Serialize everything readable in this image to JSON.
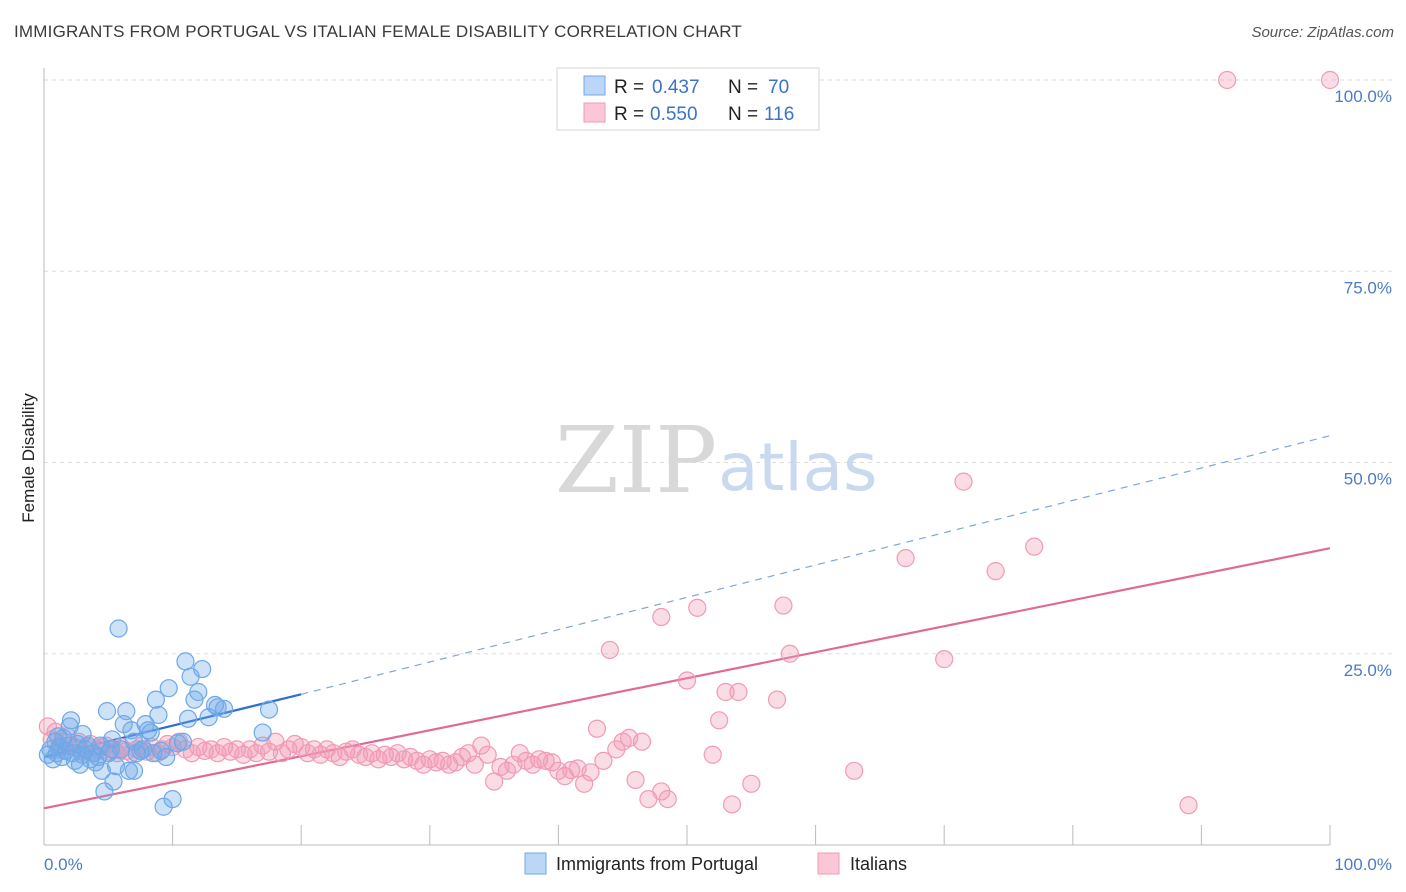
{
  "title": "IMMIGRANTS FROM PORTUGAL VS ITALIAN FEMALE DISABILITY CORRELATION CHART",
  "source": "Source: ZipAtlas.com",
  "watermark": {
    "zip": "ZIP",
    "atlas": "atlas"
  },
  "colors": {
    "blue": "#6fa8e8",
    "blue_line": "#2f6fd1",
    "pink": "#f29ab5",
    "pink_line": "#e06a94",
    "grid": "#dddddd"
  },
  "legend": {
    "series": [
      {
        "r_label": "R =",
        "r_value": "0.437",
        "n_label": "N =",
        "n_value": "70"
      },
      {
        "r_label": "R =",
        "r_value": "0.550",
        "n_label": "N =",
        "n_value": "116"
      }
    ]
  },
  "chart_data": {
    "type": "scatter",
    "title": "IMMIGRANTS FROM PORTUGAL VS ITALIAN FEMALE DISABILITY CORRELATION CHART",
    "xlabel": "",
    "ylabel": "Female Disability",
    "xlim": [
      0,
      100
    ],
    "ylim": [
      0,
      100
    ],
    "x_tick_labels": [
      "0.0%",
      "100.0%"
    ],
    "y_tick_labels": [
      {
        "v": 100,
        "label": "100.0%"
      },
      {
        "v": 75,
        "label": "75.0%"
      },
      {
        "v": 50,
        "label": "50.0%"
      },
      {
        "v": 25,
        "label": "25.0%"
      }
    ],
    "grid": true,
    "series": [
      {
        "name": "Immigrants from Portugal",
        "r": 0.437,
        "n": 70,
        "trend": {
          "x0": 0,
          "y0": 11.5,
          "x1": 20,
          "y1": 19.7,
          "dash_to_x": 100,
          "dash_to_y": 53.5
        },
        "points": [
          [
            0.3,
            11.8
          ],
          [
            0.5,
            12.5
          ],
          [
            0.7,
            11.2
          ],
          [
            0.9,
            13.5
          ],
          [
            1.0,
            12.0
          ],
          [
            1.2,
            12.8
          ],
          [
            1.4,
            11.5
          ],
          [
            1.5,
            14.0
          ],
          [
            1.7,
            12.3
          ],
          [
            1.9,
            13.0
          ],
          [
            2.0,
            15.5
          ],
          [
            2.1,
            16.3
          ],
          [
            2.2,
            12.0
          ],
          [
            2.4,
            11.0
          ],
          [
            2.6,
            13.2
          ],
          [
            2.8,
            10.5
          ],
          [
            3.0,
            11.8
          ],
          [
            3.2,
            12.5
          ],
          [
            3.4,
            13.0
          ],
          [
            3.6,
            11.2
          ],
          [
            3.8,
            12.0
          ],
          [
            4.0,
            10.8
          ],
          [
            4.2,
            11.5
          ],
          [
            4.4,
            13.0
          ],
          [
            4.5,
            9.7
          ],
          [
            4.7,
            7.0
          ],
          [
            4.9,
            17.5
          ],
          [
            5.0,
            12.0
          ],
          [
            5.2,
            12.5
          ],
          [
            5.4,
            8.3
          ],
          [
            5.6,
            10.3
          ],
          [
            5.8,
            28.3
          ],
          [
            6.0,
            12.5
          ],
          [
            6.2,
            15.8
          ],
          [
            6.4,
            17.5
          ],
          [
            6.6,
            9.7
          ],
          [
            6.8,
            15.0
          ],
          [
            7.0,
            9.7
          ],
          [
            7.2,
            12.0
          ],
          [
            7.5,
            12.3
          ],
          [
            7.7,
            12.5
          ],
          [
            7.9,
            15.8
          ],
          [
            8.1,
            15.0
          ],
          [
            8.3,
            14.7
          ],
          [
            8.5,
            12.0
          ],
          [
            8.7,
            19.0
          ],
          [
            8.9,
            17.0
          ],
          [
            9.1,
            12.3
          ],
          [
            9.3,
            5.0
          ],
          [
            9.5,
            11.5
          ],
          [
            9.7,
            20.5
          ],
          [
            10.0,
            6.0
          ],
          [
            10.4,
            13.3
          ],
          [
            10.8,
            13.5
          ],
          [
            11.0,
            24.0
          ],
          [
            11.2,
            16.5
          ],
          [
            11.4,
            22.0
          ],
          [
            11.7,
            19.0
          ],
          [
            12.0,
            20.0
          ],
          [
            12.3,
            23.0
          ],
          [
            12.8,
            16.7
          ],
          [
            13.3,
            18.3
          ],
          [
            13.5,
            18.0
          ],
          [
            14.0,
            17.8
          ],
          [
            17.0,
            14.7
          ],
          [
            17.5,
            17.7
          ],
          [
            1.1,
            14.2
          ],
          [
            3.0,
            14.5
          ],
          [
            5.3,
            13.8
          ],
          [
            7.0,
            13.5
          ]
        ]
      },
      {
        "name": "Italians",
        "r": 0.55,
        "n": 116,
        "trend": {
          "x0": 0,
          "y0": 4.8,
          "x1": 100,
          "y1": 38.8
        },
        "points": [
          [
            0.3,
            15.5
          ],
          [
            0.6,
            13.8
          ],
          [
            0.9,
            14.8
          ],
          [
            1.2,
            12.5
          ],
          [
            1.5,
            13.5
          ],
          [
            1.8,
            14.2
          ],
          [
            2.1,
            13.0
          ],
          [
            2.4,
            12.8
          ],
          [
            2.7,
            13.5
          ],
          [
            3.0,
            12.2
          ],
          [
            3.3,
            12.8
          ],
          [
            3.6,
            13.2
          ],
          [
            3.9,
            12.0
          ],
          [
            4.2,
            12.5
          ],
          [
            4.5,
            12.8
          ],
          [
            4.8,
            13.0
          ],
          [
            5.1,
            12.2
          ],
          [
            5.4,
            12.5
          ],
          [
            5.7,
            12.0
          ],
          [
            6.0,
            12.8
          ],
          [
            6.4,
            12.3
          ],
          [
            6.8,
            12.0
          ],
          [
            7.2,
            12.5
          ],
          [
            7.6,
            13.0
          ],
          [
            8.0,
            12.2
          ],
          [
            8.4,
            12.8
          ],
          [
            8.8,
            12.0
          ],
          [
            9.2,
            12.5
          ],
          [
            9.6,
            13.2
          ],
          [
            10.0,
            12.8
          ],
          [
            10.5,
            13.5
          ],
          [
            11.0,
            12.5
          ],
          [
            11.5,
            12.0
          ],
          [
            12.0,
            12.8
          ],
          [
            12.5,
            12.3
          ],
          [
            13.0,
            12.5
          ],
          [
            13.5,
            12.0
          ],
          [
            14.0,
            12.8
          ],
          [
            14.5,
            12.2
          ],
          [
            15.0,
            12.5
          ],
          [
            15.5,
            11.8
          ],
          [
            16.0,
            12.5
          ],
          [
            16.5,
            12.0
          ],
          [
            17.0,
            13.0
          ],
          [
            17.5,
            12.2
          ],
          [
            18.0,
            13.5
          ],
          [
            18.5,
            12.0
          ],
          [
            19.0,
            12.5
          ],
          [
            19.5,
            13.2
          ],
          [
            20.0,
            12.8
          ],
          [
            20.5,
            12.0
          ],
          [
            21.0,
            12.5
          ],
          [
            21.5,
            11.8
          ],
          [
            22.0,
            12.5
          ],
          [
            22.5,
            12.0
          ],
          [
            23.0,
            11.5
          ],
          [
            23.5,
            12.2
          ],
          [
            24.0,
            12.5
          ],
          [
            24.5,
            11.8
          ],
          [
            25.0,
            11.5
          ],
          [
            25.5,
            12.0
          ],
          [
            26.0,
            11.2
          ],
          [
            26.5,
            11.8
          ],
          [
            27.0,
            11.5
          ],
          [
            27.5,
            12.0
          ],
          [
            28.0,
            11.2
          ],
          [
            28.5,
            11.5
          ],
          [
            29.0,
            11.0
          ],
          [
            29.5,
            10.5
          ],
          [
            30.0,
            11.2
          ],
          [
            30.5,
            10.8
          ],
          [
            31.0,
            11.0
          ],
          [
            31.5,
            10.5
          ],
          [
            32.0,
            10.8
          ],
          [
            32.5,
            11.5
          ],
          [
            33.0,
            12.0
          ],
          [
            33.5,
            10.5
          ],
          [
            34.0,
            13.0
          ],
          [
            34.5,
            11.8
          ],
          [
            35.0,
            8.3
          ],
          [
            35.5,
            10.2
          ],
          [
            36.0,
            9.7
          ],
          [
            36.5,
            10.5
          ],
          [
            37.0,
            12.0
          ],
          [
            37.5,
            11.0
          ],
          [
            38.0,
            10.5
          ],
          [
            38.5,
            11.2
          ],
          [
            39.0,
            11.0
          ],
          [
            39.5,
            10.8
          ],
          [
            40.0,
            9.7
          ],
          [
            40.5,
            9.0
          ],
          [
            41.0,
            9.8
          ],
          [
            41.5,
            10.0
          ],
          [
            42.0,
            8.0
          ],
          [
            42.5,
            9.5
          ],
          [
            43.0,
            15.2
          ],
          [
            43.5,
            11.0
          ],
          [
            44.0,
            25.5
          ],
          [
            44.5,
            12.5
          ],
          [
            45.0,
            13.5
          ],
          [
            46.0,
            8.5
          ],
          [
            46.5,
            13.5
          ],
          [
            47.0,
            6.0
          ],
          [
            48.0,
            29.8
          ],
          [
            48.5,
            6.0
          ],
          [
            50.0,
            21.5
          ],
          [
            50.8,
            31.0
          ],
          [
            52.0,
            11.8
          ],
          [
            52.5,
            16.3
          ],
          [
            53.0,
            20.0
          ],
          [
            54.0,
            20.0
          ],
          [
            55.0,
            8.0
          ],
          [
            57.0,
            19.0
          ],
          [
            57.5,
            31.3
          ],
          [
            58.0,
            25.0
          ],
          [
            63.0,
            9.7
          ],
          [
            67.0,
            37.5
          ],
          [
            71.5,
            47.5
          ],
          [
            77.0,
            39.0
          ],
          [
            89.0,
            5.2
          ]
        ],
        "outliers": [
          [
            92.0,
            100.0
          ],
          [
            100.0,
            100.0
          ],
          [
            74.0,
            35.8
          ],
          [
            70.0,
            24.3
          ],
          [
            45.5,
            14.0
          ],
          [
            53.5,
            5.3
          ],
          [
            48.0,
            7.0
          ]
        ]
      }
    ]
  },
  "bottom_legend": [
    {
      "label": "Immigrants from Portugal"
    },
    {
      "label": "Italians"
    }
  ]
}
